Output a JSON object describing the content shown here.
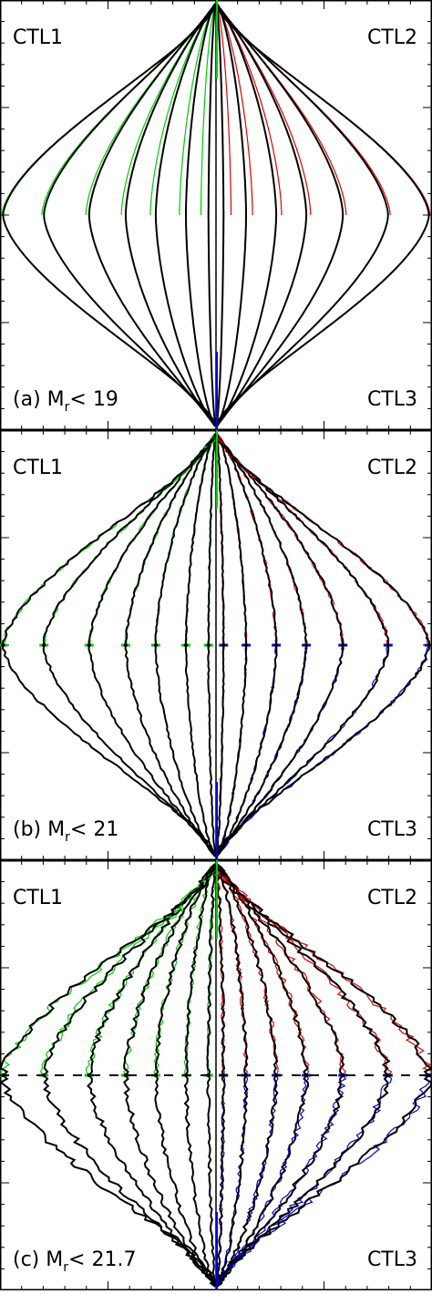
{
  "figure": {
    "panel_count": 3
  },
  "chart_data": [
    {
      "type": "line",
      "panel": "a",
      "label_prefix": "(a)",
      "magnitude_label": "M",
      "magnitude_subscript": "r",
      "relation": "<",
      "threshold": "19",
      "quadrant_labels": {
        "top_left": "CTL1",
        "top_right": "CTL2",
        "bottom_right": "CTL3"
      },
      "series_colors": {
        "model": "#000000",
        "ctl1": "#00cc00",
        "ctl2": "#e00000",
        "ctl3": "#0000e0"
      },
      "noise": 0.0,
      "contour_half_widths": [
        0.035,
        0.14,
        0.28,
        0.42,
        0.59,
        0.8,
        0.99
      ],
      "cusp_dots": false
    },
    {
      "type": "line",
      "panel": "b",
      "label_prefix": "(b)",
      "magnitude_label": "M",
      "magnitude_subscript": "r",
      "relation": "<",
      "threshold": "21",
      "quadrant_labels": {
        "top_left": "CTL1",
        "top_right": "CTL2",
        "bottom_right": "CTL3"
      },
      "series_colors": {
        "model": "#000000",
        "ctl1": "#00cc00",
        "ctl2": "#e00000",
        "ctl3": "#0000e0"
      },
      "noise": 0.012,
      "contour_half_widths": [
        0.035,
        0.14,
        0.28,
        0.42,
        0.59,
        0.8,
        0.99
      ],
      "cusp_dots": true
    },
    {
      "type": "line",
      "panel": "c",
      "label_prefix": "(c)",
      "magnitude_label": "M",
      "magnitude_subscript": "r",
      "relation": "<",
      "threshold": "21.7",
      "quadrant_labels": {
        "top_left": "CTL1",
        "top_right": "CTL2",
        "bottom_right": "CTL3"
      },
      "series_colors": {
        "model": "#000000",
        "ctl1": "#00cc00",
        "ctl2": "#e00000",
        "ctl3": "#0000e0"
      },
      "noise": 0.03,
      "contour_half_widths": [
        0.035,
        0.14,
        0.28,
        0.42,
        0.59,
        0.8,
        0.99
      ],
      "cusp_dots": true
    }
  ]
}
